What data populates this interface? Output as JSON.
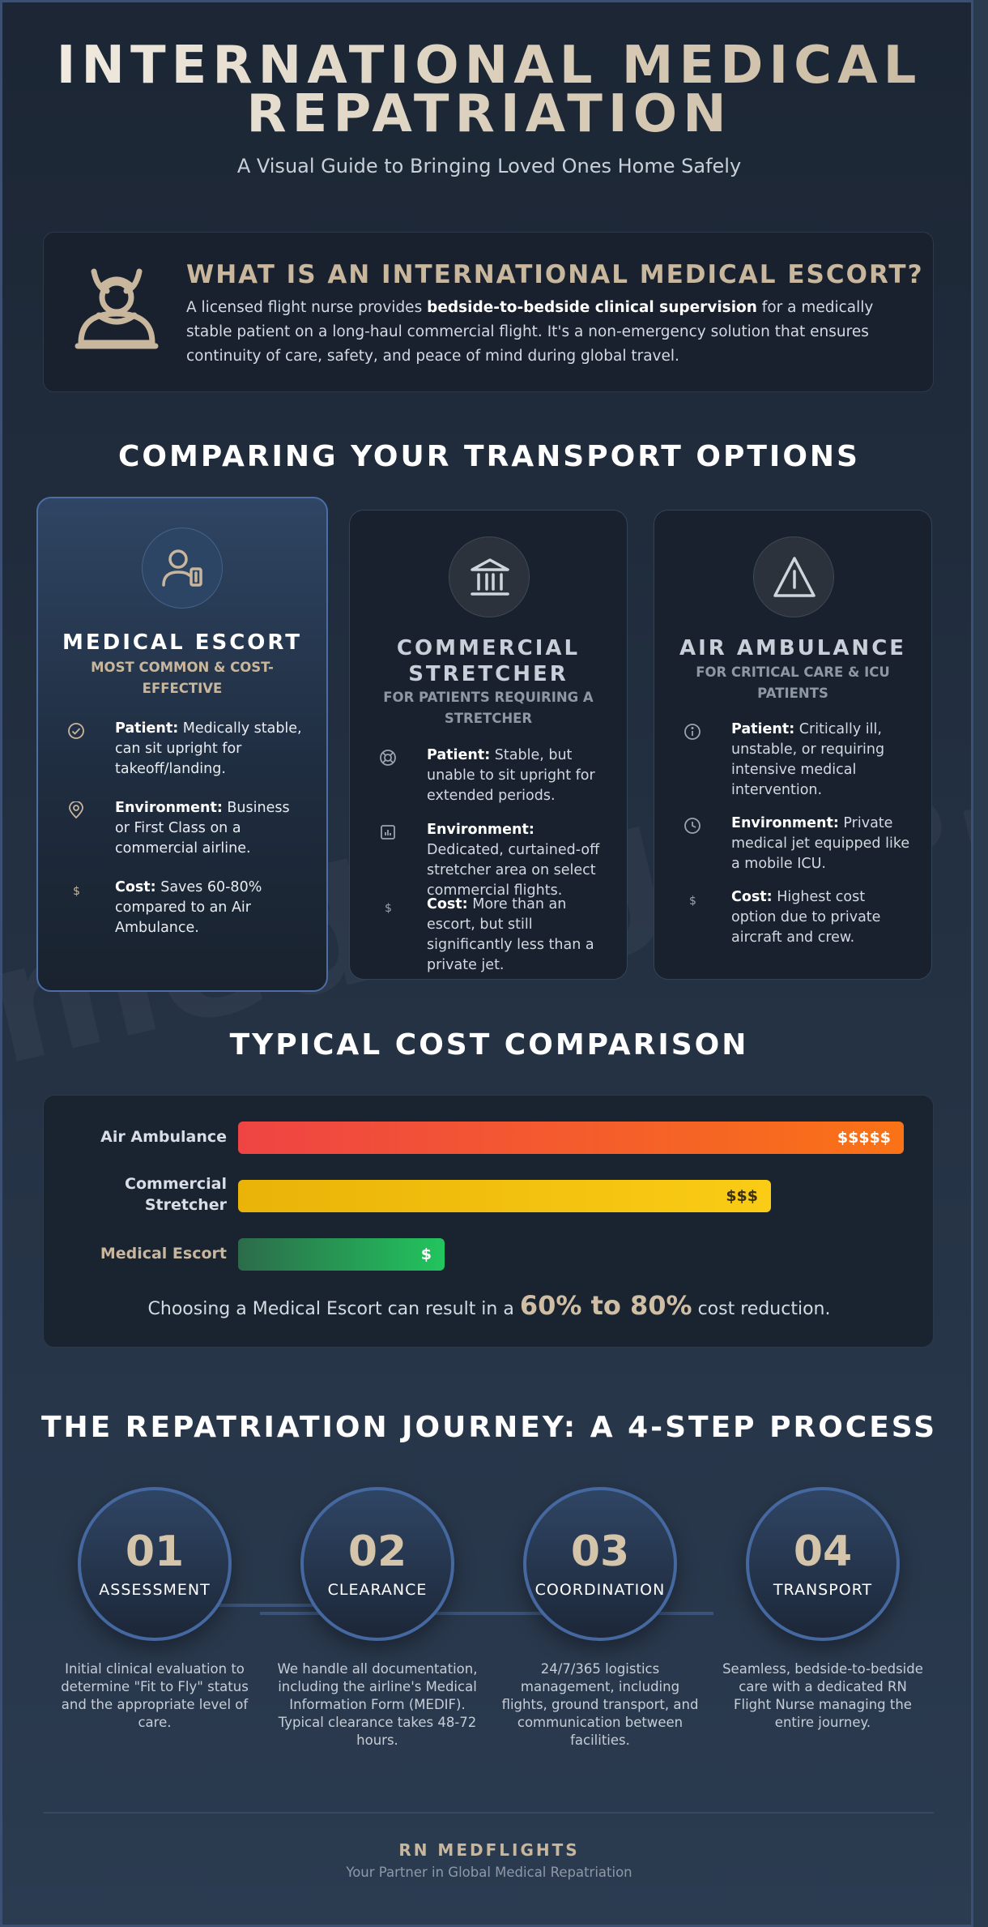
{
  "header": {
    "title_line1": "INTERNATIONAL MEDICAL",
    "title_line2": "REPATRIATION",
    "subtitle": "A Visual Guide to Bringing Loved Ones Home Safely"
  },
  "watermark": "medflights.c",
  "intro": {
    "icon": "nurse-icon",
    "heading": "WHAT IS AN INTERNATIONAL MEDICAL ESCORT?",
    "text_before": "A licensed flight nurse provides ",
    "text_bold": "bedside-to-bedside clinical supervision",
    "text_after": " for a medically stable patient on a long-haul commercial flight. It's a non-emergency solution that ensures continuity of care, safety, and peace of mind during global travel."
  },
  "options": {
    "title": "COMPARING YOUR TRANSPORT OPTIONS",
    "cards": [
      {
        "icon": "user-badge-icon",
        "title": "MEDICAL ESCORT",
        "subtitle": "MOST COMMON & COST-EFFECTIVE",
        "features": [
          {
            "icon": "check-circle-icon",
            "label": "Patient:",
            "text": " Medically stable, can sit upright for takeoff/landing."
          },
          {
            "icon": "location-pin-icon",
            "label": "Environment:",
            "text": " Business or First Class on a commercial airline."
          },
          {
            "icon": "dollar-icon",
            "label": "Cost:",
            "text": " Saves 60-80% compared to an Air Ambulance."
          }
        ]
      },
      {
        "icon": "building-icon",
        "title_line1": "COMMERCIAL",
        "title_line2": "STRETCHER",
        "subtitle": "FOR PATIENTS REQUIRING A STRETCHER",
        "features": [
          {
            "icon": "lifebuoy-icon",
            "label": "Patient:",
            "text": " Stable, but unable to sit upright for extended periods."
          },
          {
            "icon": "chart-doc-icon",
            "label": "Environment:",
            "text": " Dedicated, curtained-off stretcher area on select commercial flights."
          },
          {
            "icon": "dollar-icon",
            "label": "Cost:",
            "text": " More than an escort, but still significantly less than a private jet."
          }
        ]
      },
      {
        "icon": "warning-triangle-icon",
        "title": "AIR AMBULANCE",
        "subtitle": "FOR CRITICAL CARE & ICU PATIENTS",
        "features": [
          {
            "icon": "info-circle-icon",
            "label": "Patient:",
            "text": " Critically ill, unstable, or requiring intensive medical intervention."
          },
          {
            "icon": "clock-icon",
            "label": "Environment:",
            "text": " Private medical jet equipped like a mobile ICU."
          },
          {
            "icon": "dollar-icon",
            "label": "Cost:",
            "text": " Highest cost option due to private aircraft and crew."
          }
        ]
      }
    ]
  },
  "cost": {
    "title": "TYPICAL COST COMPARISON",
    "bars": [
      {
        "label": "Air Ambulance",
        "value": "$$$$$",
        "relative": 1.0
      },
      {
        "label_line1": "Commercial",
        "label_line2": "Stretcher",
        "value": "$$$",
        "relative": 0.8
      },
      {
        "label": "Medical Escort",
        "value": "$",
        "relative": 0.31
      }
    ],
    "note_before": "Choosing a Medical Escort can result in a ",
    "note_highlight": "60% to 80%",
    "note_after": " cost reduction."
  },
  "journey": {
    "title": "THE REPATRIATION JOURNEY: A 4-STEP PROCESS",
    "steps": [
      {
        "number": "01",
        "name": "ASSESSMENT",
        "description": "Initial clinical evaluation to determine \"Fit to Fly\" status and the appropriate level of care."
      },
      {
        "number": "02",
        "name": "CLEARANCE",
        "description": "We handle all documentation, including the airline's Medical Information Form (MEDIF). Typical clearance takes 48-72 hours."
      },
      {
        "number": "03",
        "name": "COORDINATION",
        "description": "24/7/365 logistics management, including flights, ground transport, and communication between facilities."
      },
      {
        "number": "04",
        "name": "TRANSPORT",
        "description": "Seamless, bedside-to-bedside care with a dedicated RN Flight Nurse managing the entire journey."
      }
    ]
  },
  "footer": {
    "brand": "RN MEDFLIGHTS",
    "tagline": "Your Partner in Global Medical Repatriation"
  },
  "colors": {
    "accent_gold": "#c8b79d",
    "air_ambulance_bar": "#f05a3c",
    "stretcher_bar": "#f1be17",
    "escort_bar": "#26b45c",
    "step_ring": "#4668a0"
  }
}
